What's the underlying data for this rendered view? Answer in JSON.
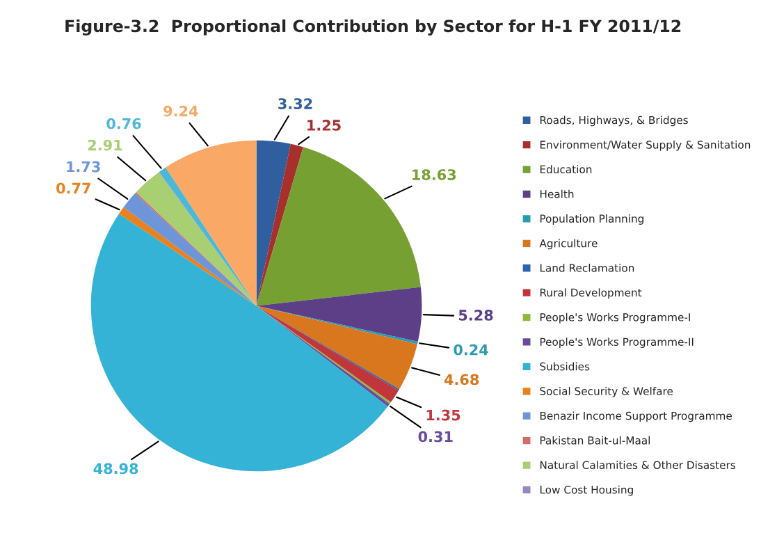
{
  "chart_data": {
    "type": "pie",
    "title": "Figure-3.2  Proportional Contribution by Sector for H-1 FY 2011/12",
    "categories": [
      "Roads, Highways, & Bridges",
      "Environment/Water Supply & Sanitation",
      "Education",
      "Health",
      "Population Planning",
      "Agriculture",
      "Land Reclamation",
      "Rural Development",
      "People's Works Programme-I",
      "People's Works Programme-II",
      "Subsidies",
      "Social Security & Welfare",
      "Benazir Income Support Programme",
      "Pakistan Bait-ul-Maal",
      "Natural Calamities & Other Disasters",
      "Low Cost Housing",
      null,
      null
    ],
    "values": [
      3.32,
      1.25,
      18.63,
      5.28,
      0.24,
      4.68,
      0.15,
      1.35,
      0.2,
      0.31,
      48.98,
      0.77,
      1.73,
      0.15,
      2.91,
      0.05,
      0.76,
      9.24
    ],
    "value_labels": [
      "3.32",
      "1.25",
      "18.63",
      "5.28",
      "0.24",
      "4.68",
      null,
      "1.35",
      null,
      "0.31",
      "48.98",
      "0.77",
      "1.73",
      null,
      "2.91",
      null,
      "0.76",
      "9.24"
    ],
    "colors": [
      "#2f5f9e",
      "#a8302c",
      "#77a033",
      "#5d3f88",
      "#2a9bb3",
      "#d9771e",
      "#2c64ae",
      "#c0363a",
      "#8fba3e",
      "#6a4a9c",
      "#35b3d6",
      "#e8821f",
      "#6d95d8",
      "#d46a6a",
      "#a9cf73",
      "#9a86c0",
      "#4bb8d6",
      "#f9a866"
    ],
    "legend": "right"
  }
}
